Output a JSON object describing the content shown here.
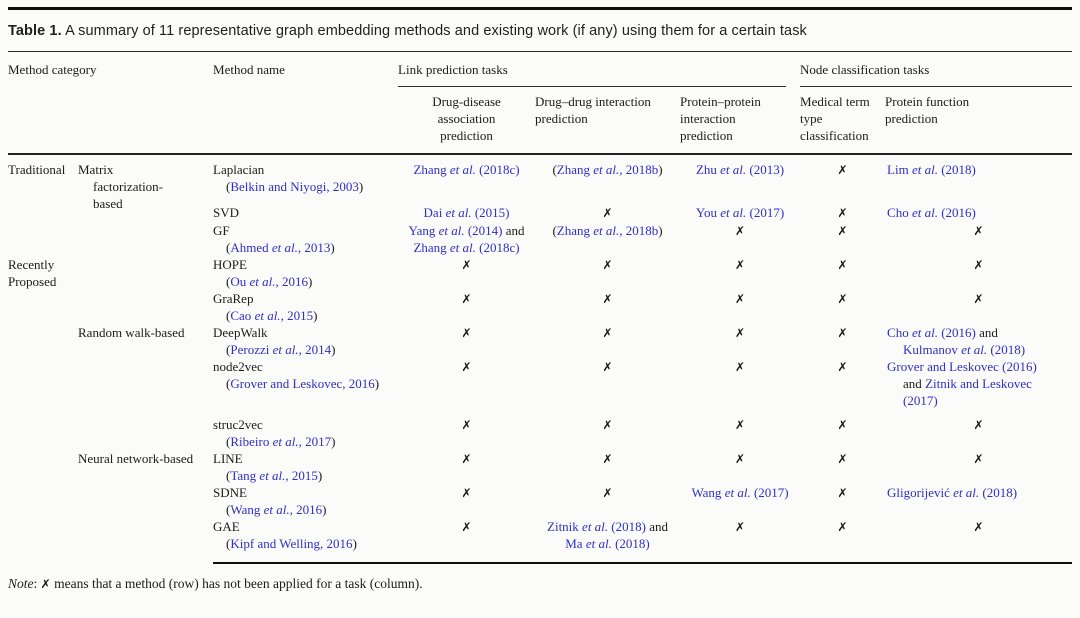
{
  "title": {
    "label": "Table 1.",
    "text": "A summary of 11 representative graph embedding methods and existing work (if any) using them for a certain task"
  },
  "columns": {
    "method_category": "Method category",
    "method_name": "Method name",
    "groups": [
      {
        "label": "Link prediction tasks",
        "subcolumns": [
          "Drug-disease association prediction",
          "Drug–drug interaction prediction",
          "Protein–protein interaction prediction"
        ]
      },
      {
        "label": "Node classification tasks",
        "subcolumns": [
          "Medical term type classification",
          "Protein function prediction"
        ]
      }
    ]
  },
  "colors": {
    "citation_blue": "#2f2fc5",
    "text_black": "#1b1b1b",
    "rule_black": "#0e0e0e"
  },
  "x_glyph": "✗",
  "run_styles": {
    "c": "citation",
    "p": "plain"
  },
  "rows": [
    {
      "category": {
        "lines": [
          "Traditional"
        ],
        "rowspan": 3
      },
      "subcategory": {
        "lines": [
          "Matrix",
          "factorization-",
          "based"
        ],
        "rowspan": 5
      },
      "method": {
        "name": "Laplacian",
        "cite": "Belkin and Niyogi, 2003"
      },
      "cells": [
        {
          "lines": [
            [
              [
                "Zhang et al. (2018c)",
                "c"
              ]
            ]
          ]
        },
        {
          "lines": [
            [
              [
                "(",
                "p"
              ],
              [
                "Zhang et al., 2018b",
                "c"
              ],
              [
                ")",
                "p"
              ]
            ]
          ]
        },
        {
          "lines": [
            [
              [
                "Zhu et al. (2013)",
                "c"
              ]
            ]
          ]
        },
        "x",
        {
          "lines": [
            [
              [
                "Lim et al. (2018)",
                "c"
              ]
            ]
          ]
        }
      ]
    },
    {
      "method": {
        "name": "SVD"
      },
      "cells": [
        {
          "lines": [
            [
              [
                "Dai et al. (2015)",
                "c"
              ]
            ]
          ]
        },
        "x",
        {
          "lines": [
            [
              [
                "You et al. (2017)",
                "c"
              ]
            ]
          ]
        },
        "x",
        {
          "lines": [
            [
              [
                "Cho et al. (2016)",
                "c"
              ]
            ]
          ]
        }
      ]
    },
    {
      "method": {
        "name": "GF",
        "cite": "Ahmed et al., 2013"
      },
      "cells": [
        {
          "lines": [
            [
              [
                "Yang et al. (2014)",
                "c"
              ],
              [
                " and",
                "p"
              ]
            ],
            [
              [
                "Zhang et al. (2018c)",
                "c"
              ]
            ]
          ]
        },
        {
          "lines": [
            [
              [
                "(",
                "p"
              ],
              [
                "Zhang et al., 2018b",
                "c"
              ],
              [
                ")",
                "p"
              ]
            ]
          ]
        },
        "x",
        "x",
        "x"
      ]
    },
    {
      "category": {
        "lines": [
          "Recently",
          "Proposed"
        ],
        "rowspan": 8
      },
      "method": {
        "name": "HOPE",
        "cite": "Ou et al., 2016"
      },
      "cells": [
        "x",
        "x",
        "x",
        "x",
        "x"
      ]
    },
    {
      "method": {
        "name": "GraRep",
        "cite": "Cao et al., 2015"
      },
      "cells": [
        "x",
        "x",
        "x",
        "x",
        "x"
      ]
    },
    {
      "subcategory": {
        "lines": [
          "Random walk-based"
        ],
        "rowspan": 3
      },
      "method": {
        "name": "DeepWalk",
        "cite": "Perozzi et al., 2014"
      },
      "cells": [
        "x",
        "x",
        "x",
        "x",
        {
          "lines": [
            [
              [
                "Cho et al. (2016)",
                "c"
              ],
              [
                " and",
                "p"
              ]
            ],
            [
              [
                "Kulmanov et al. (2018)",
                "c"
              ]
            ]
          ]
        }
      ]
    },
    {
      "method": {
        "name": "node2vec",
        "cite": "Grover and Leskovec, 2016"
      },
      "cells": [
        "x",
        "x",
        "x",
        "x",
        {
          "lines": [
            [
              [
                "Grover and Leskovec (2016)",
                "c"
              ]
            ],
            [
              [
                "and ",
                "p"
              ],
              [
                "Zitnik and Leskovec",
                "c"
              ]
            ],
            [
              [
                "(2017)",
                "c"
              ]
            ]
          ]
        }
      ]
    },
    {
      "method": {
        "name": "struc2vec",
        "cite": "Ribeiro et al., 2017"
      },
      "cells": [
        "x",
        "x",
        "x",
        "x",
        "x"
      ]
    },
    {
      "subcategory": {
        "lines": [
          "Neural network-based"
        ],
        "rowspan": 3
      },
      "method": {
        "name": "LINE",
        "cite": "Tang et al., 2015"
      },
      "cells": [
        "x",
        "x",
        "x",
        "x",
        "x"
      ]
    },
    {
      "method": {
        "name": "SDNE",
        "cite": "Wang et al., 2016"
      },
      "cells": [
        "x",
        "x",
        {
          "lines": [
            [
              [
                "Wang et al. (2017)",
                "c"
              ]
            ]
          ]
        },
        "x",
        {
          "lines": [
            [
              [
                "Gligorijević et al. (2018)",
                "c"
              ]
            ]
          ]
        }
      ]
    },
    {
      "method": {
        "name": "GAE",
        "cite": "Kipf and Welling, 2016"
      },
      "cells": [
        "x",
        {
          "lines": [
            [
              [
                "Zitnik et al. (2018)",
                "c"
              ],
              [
                " and",
                "p"
              ]
            ],
            [
              [
                "Ma et al. (2018)",
                "c"
              ]
            ]
          ]
        },
        "x",
        "x",
        "x"
      ]
    }
  ],
  "note": {
    "label": "Note",
    "separator": ": ",
    "x_glyph": "✗",
    "text": " means that a method (row) has not been applied for a task (column)."
  }
}
